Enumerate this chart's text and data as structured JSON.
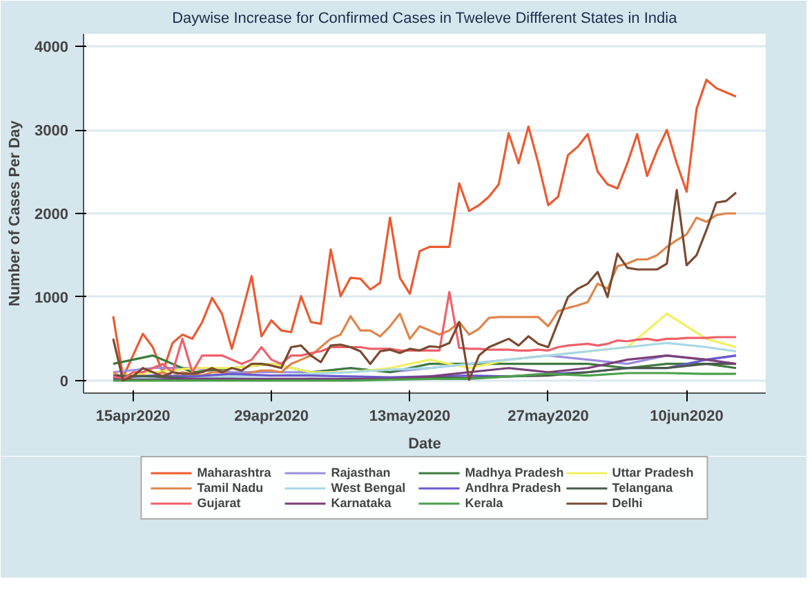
{
  "chart_data": {
    "type": "line",
    "title": "Daywise Increase for Confirmed Cases in Tweleve Diffferent States in India",
    "xlabel": "Date",
    "ylabel": "Number of Cases Per Day",
    "x": [
      "2020-04-13",
      "2020-04-14",
      "2020-04-15",
      "2020-04-16",
      "2020-04-17",
      "2020-04-18",
      "2020-04-19",
      "2020-04-20",
      "2020-04-21",
      "2020-04-22",
      "2020-04-23",
      "2020-04-24",
      "2020-04-25",
      "2020-04-26",
      "2020-04-27",
      "2020-04-28",
      "2020-04-29",
      "2020-04-30",
      "2020-05-01",
      "2020-05-02",
      "2020-05-03",
      "2020-05-04",
      "2020-05-05",
      "2020-05-06",
      "2020-05-07",
      "2020-05-08",
      "2020-05-09",
      "2020-05-10",
      "2020-05-11",
      "2020-05-12",
      "2020-05-13",
      "2020-05-14",
      "2020-05-15",
      "2020-05-16",
      "2020-05-17",
      "2020-05-18",
      "2020-05-19",
      "2020-05-20",
      "2020-05-21",
      "2020-05-22",
      "2020-05-23",
      "2020-05-24",
      "2020-05-25",
      "2020-05-26",
      "2020-05-27",
      "2020-05-28",
      "2020-05-29",
      "2020-05-30",
      "2020-05-31",
      "2020-06-01",
      "2020-06-02",
      "2020-06-03",
      "2020-06-04",
      "2020-06-05",
      "2020-06-06",
      "2020-06-07",
      "2020-06-08",
      "2020-06-09",
      "2020-06-10",
      "2020-06-11",
      "2020-06-12",
      "2020-06-13",
      "2020-06-14",
      "2020-06-15"
    ],
    "series": [
      {
        "name": "Maharashtra",
        "color": "#ec5a2f",
        "values": [
          770,
          40,
          300,
          560,
          400,
          100,
          450,
          550,
          500,
          700,
          990,
          800,
          380,
          800,
          1250,
          530,
          720,
          600,
          580,
          1010,
          700,
          680,
          1570,
          1010,
          1230,
          1220,
          1090,
          1170,
          1950,
          1230,
          1040,
          1550,
          1600,
          1600,
          1600,
          2360,
          2030,
          2100,
          2200,
          2350,
          2960,
          2600,
          3040,
          2600,
          2100,
          2200,
          2700,
          2800,
          2950,
          2500,
          2350,
          2300,
          2600,
          2950,
          2450,
          2750,
          3000,
          2600,
          2260,
          3250,
          3600,
          3500,
          3450,
          3400
        ]
      },
      {
        "name": "Rajasthan",
        "color": "#9b8ee0",
        "x": [
          "2020-04-13",
          "2020-04-17",
          "2020-04-21",
          "2020-04-25",
          "2020-04-29",
          "2020-05-03",
          "2020-05-07",
          "2020-05-11",
          "2020-05-15",
          "2020-05-19",
          "2020-05-23",
          "2020-05-27",
          "2020-05-31",
          "2020-06-04",
          "2020-06-08",
          "2020-06-12",
          "2020-06-15"
        ],
        "values": [
          100,
          150,
          150,
          100,
          100,
          100,
          150,
          100,
          150,
          200,
          250,
          300,
          250,
          200,
          300,
          250,
          300
        ]
      },
      {
        "name": "Madhya Pradesh",
        "color": "#3e7a3e",
        "x": [
          "2020-04-13",
          "2020-04-17",
          "2020-04-21",
          "2020-04-25",
          "2020-04-29",
          "2020-05-03",
          "2020-05-07",
          "2020-05-11",
          "2020-05-15",
          "2020-05-19",
          "2020-05-23",
          "2020-05-27",
          "2020-05-31",
          "2020-06-04",
          "2020-06-08",
          "2020-06-12",
          "2020-06-15"
        ],
        "values": [
          200,
          300,
          100,
          150,
          200,
          100,
          150,
          100,
          200,
          200,
          200,
          200,
          200,
          150,
          200,
          200,
          150
        ]
      },
      {
        "name": "Uttar Pradesh",
        "color": "#f0f060",
        "x": [
          "2020-04-13",
          "2020-04-17",
          "2020-04-21",
          "2020-04-25",
          "2020-04-29",
          "2020-05-03",
          "2020-05-07",
          "2020-05-11",
          "2020-05-15",
          "2020-05-19",
          "2020-05-23",
          "2020-05-27",
          "2020-05-31",
          "2020-06-04",
          "2020-06-08",
          "2020-06-12",
          "2020-06-15"
        ],
        "values": [
          50,
          100,
          150,
          150,
          200,
          100,
          100,
          150,
          250,
          150,
          250,
          300,
          350,
          400,
          800,
          500,
          400
        ]
      },
      {
        "name": "Tamil Nadu",
        "color": "#e0854a",
        "values": [
          100,
          30,
          50,
          60,
          50,
          100,
          50,
          100,
          80,
          60,
          100,
          100,
          70,
          70,
          100,
          120,
          120,
          100,
          200,
          250,
          300,
          400,
          500,
          550,
          770,
          600,
          600,
          530,
          650,
          800,
          500,
          650,
          600,
          550,
          600,
          700,
          550,
          620,
          750,
          760,
          760,
          760,
          760,
          760,
          650,
          830,
          870,
          900,
          940,
          1160,
          1100,
          1370,
          1400,
          1450,
          1450,
          1500,
          1600,
          1680,
          1750,
          1950,
          1900,
          1980,
          2000,
          2000
        ]
      },
      {
        "name": "West Bengal",
        "color": "#a8d8e8",
        "x": [
          "2020-04-13",
          "2020-04-17",
          "2020-04-21",
          "2020-04-25",
          "2020-04-29",
          "2020-05-03",
          "2020-05-07",
          "2020-05-11",
          "2020-05-15",
          "2020-05-19",
          "2020-05-23",
          "2020-05-27",
          "2020-05-31",
          "2020-06-04",
          "2020-06-08",
          "2020-06-12",
          "2020-06-15"
        ],
        "values": [
          10,
          30,
          50,
          50,
          60,
          80,
          100,
          130,
          150,
          200,
          250,
          300,
          350,
          400,
          450,
          400,
          350
        ]
      },
      {
        "name": "Andhra Pradesh",
        "color": "#6a5acd",
        "x": [
          "2020-04-13",
          "2020-04-17",
          "2020-04-21",
          "2020-04-25",
          "2020-04-29",
          "2020-05-03",
          "2020-05-07",
          "2020-05-11",
          "2020-05-15",
          "2020-05-19",
          "2020-05-23",
          "2020-05-27",
          "2020-05-31",
          "2020-06-04",
          "2020-06-08",
          "2020-06-12",
          "2020-06-15"
        ],
        "values": [
          30,
          60,
          50,
          80,
          60,
          60,
          50,
          40,
          50,
          60,
          50,
          80,
          100,
          150,
          150,
          250,
          300
        ]
      },
      {
        "name": "Telangana",
        "color": "#4a5a4a",
        "x": [
          "2020-04-13",
          "2020-04-17",
          "2020-04-21",
          "2020-04-25",
          "2020-04-29",
          "2020-05-03",
          "2020-05-07",
          "2020-05-11",
          "2020-05-15",
          "2020-05-19",
          "2020-05-23",
          "2020-05-27",
          "2020-05-31",
          "2020-06-04",
          "2020-06-08",
          "2020-06-12",
          "2020-06-15"
        ],
        "values": [
          60,
          50,
          20,
          20,
          10,
          20,
          10,
          20,
          40,
          30,
          50,
          60,
          100,
          150,
          150,
          200,
          200
        ]
      },
      {
        "name": "Gujarat",
        "color": "#f0606a",
        "values": [
          50,
          20,
          100,
          100,
          150,
          200,
          100,
          500,
          100,
          300,
          300,
          300,
          250,
          200,
          250,
          400,
          250,
          200,
          300,
          300,
          330,
          350,
          400,
          400,
          400,
          400,
          380,
          380,
          380,
          360,
          360,
          360,
          360,
          360,
          1060,
          390,
          380,
          380,
          370,
          370,
          370,
          360,
          360,
          370,
          360,
          400,
          420,
          430,
          440,
          420,
          440,
          480,
          470,
          490,
          500,
          480,
          500,
          500,
          510,
          510,
          510,
          520,
          520,
          520
        ]
      },
      {
        "name": "Karnataka",
        "color": "#7a3f7a",
        "x": [
          "2020-04-13",
          "2020-04-17",
          "2020-04-21",
          "2020-04-25",
          "2020-04-29",
          "2020-05-03",
          "2020-05-07",
          "2020-05-11",
          "2020-05-15",
          "2020-05-19",
          "2020-05-23",
          "2020-05-27",
          "2020-05-31",
          "2020-06-04",
          "2020-06-08",
          "2020-06-12",
          "2020-06-15"
        ],
        "values": [
          10,
          10,
          20,
          20,
          20,
          20,
          20,
          20,
          50,
          100,
          150,
          100,
          150,
          250,
          300,
          250,
          200
        ]
      },
      {
        "name": "Kerala",
        "color": "#4aa04a",
        "x": [
          "2020-04-13",
          "2020-04-17",
          "2020-04-21",
          "2020-04-25",
          "2020-04-29",
          "2020-05-03",
          "2020-05-07",
          "2020-05-11",
          "2020-05-15",
          "2020-05-19",
          "2020-05-23",
          "2020-05-27",
          "2020-05-31",
          "2020-06-04",
          "2020-06-08",
          "2020-06-12",
          "2020-06-15"
        ],
        "values": [
          0,
          0,
          0,
          0,
          0,
          0,
          0,
          10,
          20,
          20,
          50,
          80,
          60,
          90,
          90,
          80,
          80
        ]
      },
      {
        "name": "Delhi",
        "color": "#7a4a30",
        "values": [
          500,
          0,
          50,
          150,
          100,
          50,
          100,
          80,
          80,
          100,
          150,
          100,
          150,
          120,
          200,
          200,
          180,
          150,
          400,
          420,
          300,
          220,
          420,
          430,
          400,
          350,
          200,
          350,
          370,
          330,
          380,
          360,
          410,
          400,
          450,
          700,
          10,
          300,
          400,
          450,
          500,
          420,
          530,
          440,
          400,
          700,
          1000,
          1100,
          1160,
          1300,
          1000,
          1520,
          1350,
          1330,
          1330,
          1330,
          1400,
          2280,
          1380,
          1500,
          1800,
          2130,
          2150,
          2250
        ]
      }
    ],
    "xlim": [
      "2020-04-10",
      "2020-06-18"
    ],
    "xticks": [
      {
        "value": "2020-04-15",
        "label": "15apr2020"
      },
      {
        "value": "2020-04-29",
        "label": "29apr2020"
      },
      {
        "value": "2020-05-13",
        "label": "13may2020"
      },
      {
        "value": "2020-05-27",
        "label": "27may2020"
      },
      {
        "value": "2020-06-10",
        "label": "10jun2020"
      }
    ],
    "ylim": [
      -150,
      4150
    ],
    "yticks": [
      0,
      1000,
      2000,
      3000,
      4000
    ],
    "grid": "y",
    "legend": "bottom",
    "line_style": "solid"
  }
}
